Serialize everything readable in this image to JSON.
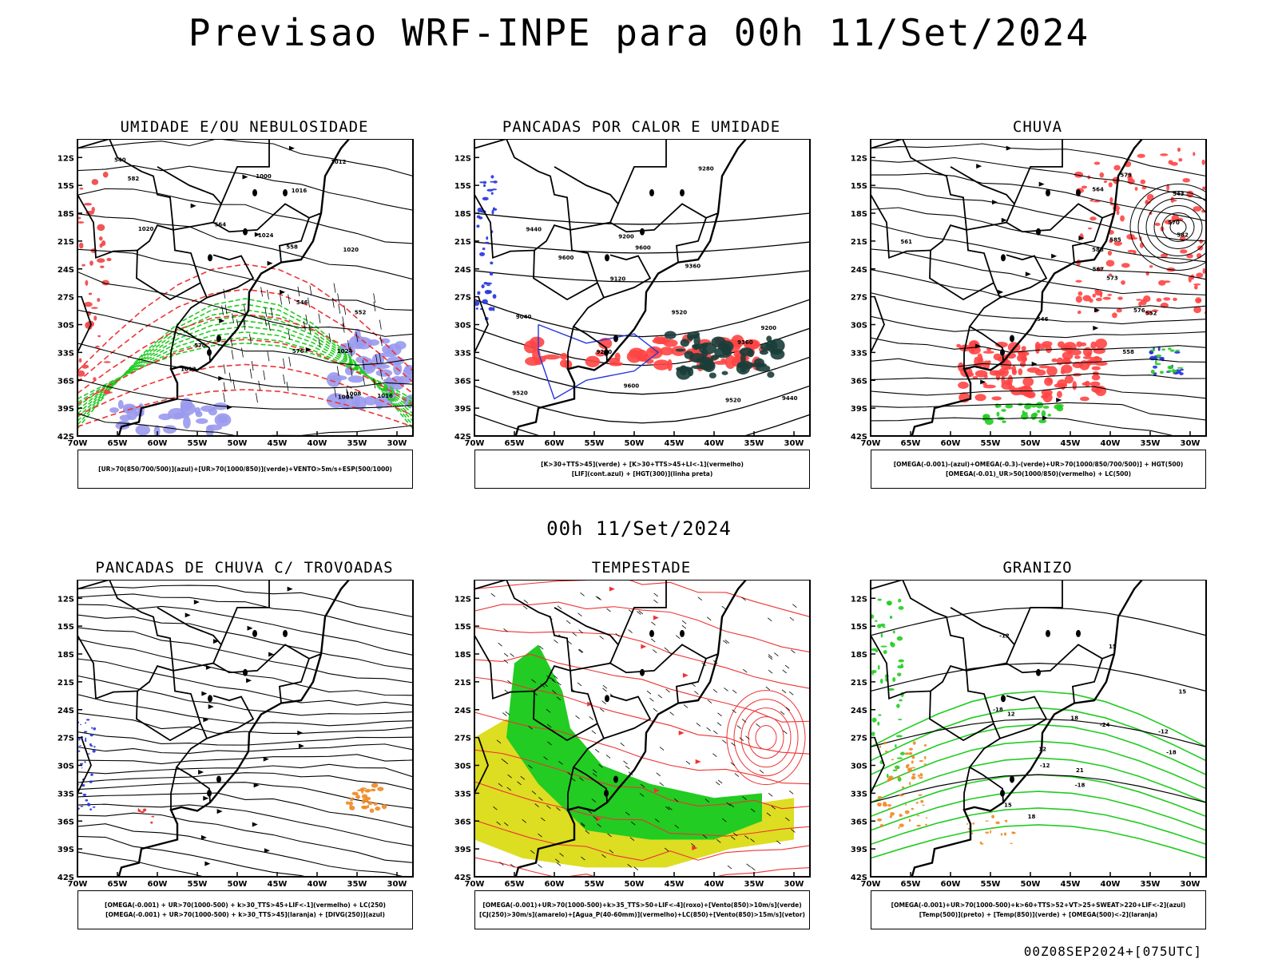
{
  "header": {
    "title": "Previsao WRF-INPE  para 00h 11/Set/2024",
    "mid_date": "00h 11/Set/2024",
    "footer": "00Z08SEP2024+[075UTC]"
  },
  "axes": {
    "lat_labels": [
      "12S",
      "15S",
      "18S",
      "21S",
      "24S",
      "27S",
      "30S",
      "33S",
      "36S",
      "39S",
      "42S"
    ],
    "lon_labels": [
      "70W",
      "65W",
      "60W",
      "55W",
      "50W",
      "45W",
      "40W",
      "35W",
      "30W"
    ]
  },
  "chart_data": [
    {
      "type": "map",
      "title": "UMIDADE E/OU NEBULOSIDADE",
      "legend_lines": [
        "[UR>70(850/700/500)](azul)+[UR>70(1000/850)](verde)+VENTO>5m/s+ESP(500/1000)"
      ],
      "contour_labels": [
        "1008",
        "1012",
        "1016",
        "1020",
        "1024",
        "1000",
        "1004",
        "1012",
        "1016",
        "1020",
        "1024",
        "576",
        "582",
        "564",
        "552",
        "540",
        "546",
        "558",
        "570"
      ],
      "xlim": [
        -70,
        -28
      ],
      "ylim": [
        -42,
        -10
      ],
      "colors": {
        "humidity_mid": "#9999ee",
        "humidity_low": "#22cc22",
        "thickness": "#ee3333",
        "pressure": "#000000"
      }
    },
    {
      "type": "map",
      "title": "PANCADAS POR CALOR E UMIDADE",
      "legend_lines": [
        "[K>30+TTS>45](verde) + [K>30+TTS>45+LI<-1](vermelho)",
        "[LIF](cont.azul) + [HGT(300)](linha preta)"
      ],
      "contour_labels": [
        "9600",
        "9600",
        "9600",
        "9520",
        "9520",
        "9520",
        "9440",
        "9440",
        "9360",
        "9280",
        "9200",
        "9120",
        "9040",
        "9360",
        "9280",
        "9200"
      ],
      "xlim": [
        -70,
        -28
      ],
      "ylim": [
        -42,
        -10
      ],
      "colors": {
        "red_area": "#ff4444",
        "dark_area": "#1a3d3a",
        "lif": "#2233dd",
        "hgt": "#000000"
      }
    },
    {
      "type": "map",
      "title": "CHUVA",
      "legend_lines": [
        "[OMEGA(-0.001)-(azul)+OMEGA(-0.3)-(verde)+UR>70(1000/850/700/500)] + HGT(500)",
        "[OMEGA(-0.01)_UR>50(1000/850)(vermelho) + LC(500)"
      ],
      "contour_labels": [
        "588",
        "582",
        "576",
        "570",
        "564",
        "558",
        "552",
        "546",
        "543",
        "579",
        "573",
        "567",
        "561",
        "585"
      ],
      "xlim": [
        -70,
        -28
      ],
      "ylim": [
        -42,
        -10
      ],
      "colors": {
        "red_area": "#ff4444",
        "green_area": "#22cc22",
        "blue_area": "#2233dd"
      }
    },
    {
      "type": "map",
      "title": "PANCADAS DE CHUVA C/ TROVOADAS",
      "legend_lines": [
        "[OMEGA(-0.001) + UR>70(1000-500) + k>30_TTS>45+LIF<-1](vermelho) + LC(250)",
        "[OMEGA(-0.001) + UR>70(1000-500) + k>30_TTS>45](laranja) + [DIVG(250)](azul)"
      ],
      "contour_labels": [],
      "xlim": [
        -70,
        -28
      ],
      "ylim": [
        -42,
        -10
      ],
      "colors": {
        "orange": "#ee8822",
        "blue": "#2233dd",
        "red": "#ee2222"
      }
    },
    {
      "type": "map",
      "title": "TEMPESTADE",
      "legend_lines": [
        "[OMEGA(-0.001)+UR>70(1000-500)+k>35_TTS>50+LIF<-4](roxo)+[Vento(850)>10m/s](verde)",
        "[CJ(250)>30m/s](amarelo)+[Agua_P(40-60mm)](vermelho)+LC(850)+[Vento(850)>15m/s](vetor)"
      ],
      "contour_labels": [],
      "xlim": [
        -70,
        -28
      ],
      "ylim": [
        -42,
        -10
      ],
      "colors": {
        "yellow": "#dddd22",
        "green": "#22cc22",
        "red": "#ee3333"
      }
    },
    {
      "type": "map",
      "title": "GRANIZO",
      "legend_lines": [
        "[OMEGA(-0.001)+UR>70(1000-500)+k>60+TTS>52+VT>25+SWEAT>220+LIF<-2](azul)",
        "[Temp(500)](preto) + [Temp(850)](verde) + [OMEGA(500)<-2](laranja)"
      ],
      "contour_labels": [
        "-12",
        "-12",
        "-12",
        "-18",
        "-18",
        "-24",
        "-18",
        "12",
        "12",
        "15",
        "15",
        "18",
        "21",
        "18",
        "15"
      ],
      "xlim": [
        -70,
        -28
      ],
      "ylim": [
        -42,
        -10
      ],
      "colors": {
        "green": "#22cc22",
        "orange": "#ee8822",
        "black": "#000000"
      }
    }
  ]
}
